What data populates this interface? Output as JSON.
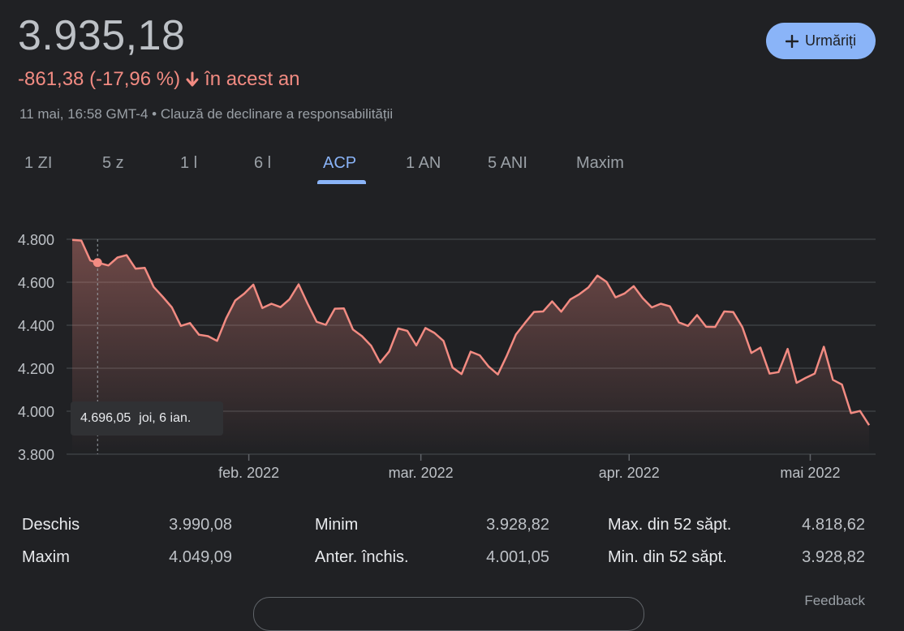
{
  "header": {
    "price": "3.935,18",
    "change": "-861,38 (-17,96 %)",
    "period": "în acest an",
    "meta": "11 mai, 16:58 GMT-4 • Clauză de declinare a responsabilității",
    "follow_label": "Urmăriți",
    "change_color": "#f28b82",
    "accent_color": "#8ab4f8"
  },
  "tabs": [
    {
      "label": "1 ZI"
    },
    {
      "label": "5 z"
    },
    {
      "label": "1 l"
    },
    {
      "label": "6 l"
    },
    {
      "label": "ACP"
    },
    {
      "label": "1 AN"
    },
    {
      "label": "5 ANI"
    },
    {
      "label": "Maxim"
    }
  ],
  "active_tab": "ACP",
  "chart_data": {
    "type": "area",
    "ylim": [
      3800,
      4800
    ],
    "yticks": [
      {
        "value": 4800,
        "label": "4.800"
      },
      {
        "value": 4600,
        "label": "4.600"
      },
      {
        "value": 4400,
        "label": "4.400"
      },
      {
        "value": 4200,
        "label": "4.200"
      },
      {
        "value": 4000,
        "label": "4.000"
      },
      {
        "value": 3800,
        "label": "3.800"
      }
    ],
    "xticks": [
      {
        "index": 19.5,
        "label": "feb. 2022"
      },
      {
        "index": 38.5,
        "label": "mar. 2022"
      },
      {
        "index": 61.5,
        "label": "apr. 2022"
      },
      {
        "index": 81.5,
        "label": "mai 2022"
      }
    ],
    "grid": true,
    "line_color": "#f28b82",
    "values": [
      4797,
      4794,
      4701,
      4689,
      4678,
      4715,
      4726,
      4663,
      4667,
      4578,
      4532,
      4483,
      4397,
      4410,
      4356,
      4349,
      4327,
      4432,
      4515,
      4547,
      4589,
      4480,
      4500,
      4484,
      4521,
      4590,
      4500,
      4416,
      4402,
      4477,
      4478,
      4380,
      4349,
      4305,
      4226,
      4278,
      4385,
      4374,
      4306,
      4387,
      4364,
      4327,
      4203,
      4173,
      4277,
      4260,
      4207,
      4171,
      4259,
      4357,
      4411,
      4462,
      4464,
      4511,
      4463,
      4520,
      4544,
      4576,
      4631,
      4602,
      4530,
      4548,
      4582,
      4526,
      4483,
      4500,
      4488,
      4413,
      4397,
      4447,
      4393,
      4392,
      4464,
      4461,
      4391,
      4271,
      4296,
      4175,
      4182,
      4290,
      4132,
      4155,
      4175,
      4300,
      4146,
      4124,
      3991,
      4001,
      3935.18
    ],
    "hover": {
      "index": 2.8,
      "value_label": "4.696,05",
      "date_label": "joi, 6 ian."
    }
  },
  "stats": {
    "rows": [
      [
        {
          "label": "Deschis",
          "value": "3.990,08"
        },
        {
          "label": "Minim",
          "value": "3.928,82"
        },
        {
          "label": "Max. din 52 săpt.",
          "value": "4.818,62"
        }
      ],
      [
        {
          "label": "Maxim",
          "value": "4.049,09"
        },
        {
          "label": "Anter. închis.",
          "value": "4.001,05"
        },
        {
          "label": "Min. din 52 săpt.",
          "value": "3.928,82"
        }
      ]
    ]
  },
  "footer": {
    "feedback": "Feedback"
  }
}
